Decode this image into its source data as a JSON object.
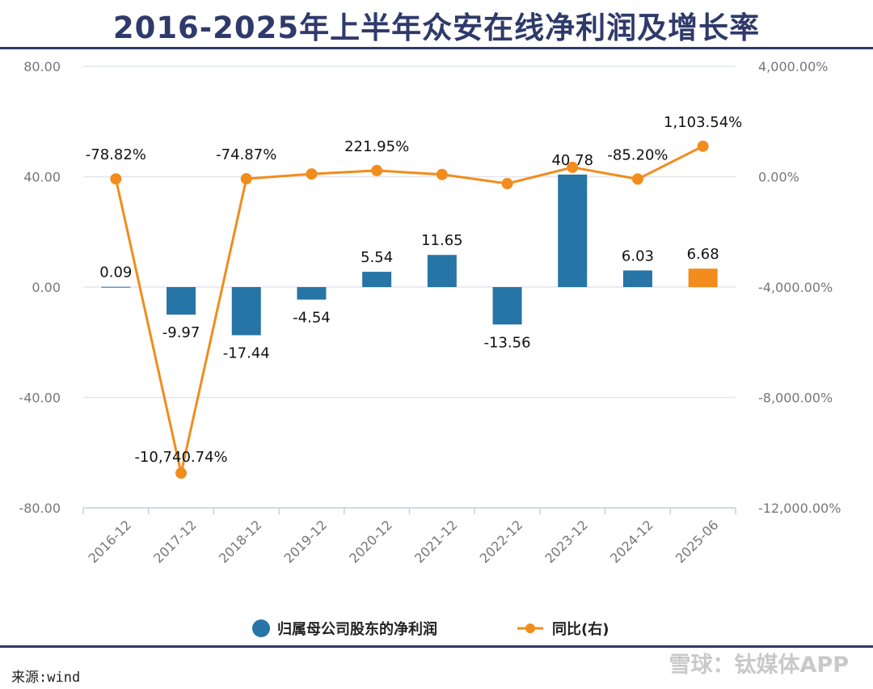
{
  "title": "2016-2025年上半年众安在线净利润及增长率",
  "source": "来源:wind",
  "watermark": "雪球：钛媒体APP",
  "colors": {
    "bar": "#2774a6",
    "bar_highlight": "#f28c1c",
    "line": "#f28c1c",
    "rule": "#2f3a6b",
    "grid": "#e2e6ef"
  },
  "chart_data": {
    "type": "bar",
    "categories": [
      "2016-12",
      "2017-12",
      "2018-12",
      "2019-12",
      "2020-12",
      "2021-12",
      "2022-12",
      "2023-12",
      "2024-12",
      "2025-06"
    ],
    "series": [
      {
        "name": "归属母公司股东的净利润",
        "type": "bar",
        "axis": "left",
        "values": [
          0.09,
          -9.97,
          -17.44,
          -4.54,
          5.54,
          11.65,
          -13.56,
          40.78,
          6.03,
          6.68
        ],
        "labels": [
          "0.09",
          "-9.97",
          "-17.44",
          "-4.54",
          "5.54",
          "11.65",
          "-13.56",
          "40.78",
          "6.03",
          "6.68"
        ]
      },
      {
        "name": "同比(右)",
        "type": "line",
        "axis": "right",
        "values": [
          -78.82,
          -10740.74,
          -74.87,
          100,
          221.95,
          80,
          -250,
          340,
          -85.2,
          1103.54
        ],
        "labels": [
          "-78.82%",
          "-10,740.74%",
          "-74.87%",
          "",
          "221.95%",
          "",
          "",
          "",
          "-85.20%",
          "1,103.54%"
        ]
      }
    ],
    "highlight_index": 9,
    "ylim_left": [
      -80,
      80
    ],
    "yticks_left": [
      "80.00",
      "40.00",
      "0.00",
      "-40.00",
      "-80.00"
    ],
    "ylim_right": [
      -12000,
      4000
    ],
    "yticks_right": [
      "4,000.00%",
      "0.00%",
      "-4,000.00%",
      "-8,000.00%",
      "-12,000.00%"
    ],
    "grid": true,
    "legend": "bottom-center"
  }
}
